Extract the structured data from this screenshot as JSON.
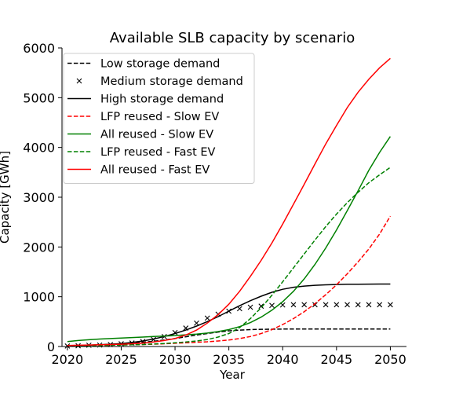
{
  "chart_data": {
    "type": "line",
    "title": "Available SLB capacity by scenario",
    "xlabel": "Year",
    "ylabel": "Capacity [GWh]",
    "xlim": [
      2019.5,
      2051.5
    ],
    "ylim": [
      0,
      6000
    ],
    "x_ticks": [
      2020,
      2025,
      2030,
      2035,
      2040,
      2045,
      2050
    ],
    "y_ticks": [
      0,
      1000,
      2000,
      3000,
      4000,
      5000,
      6000
    ],
    "grid": false,
    "legend_position": "top-left",
    "x": [
      2020,
      2021,
      2022,
      2023,
      2024,
      2025,
      2026,
      2027,
      2028,
      2029,
      2030,
      2031,
      2032,
      2033,
      2034,
      2035,
      2036,
      2037,
      2038,
      2039,
      2040,
      2041,
      2042,
      2043,
      2044,
      2045,
      2046,
      2047,
      2048,
      2049,
      2050
    ],
    "series": [
      {
        "name": "Low storage demand",
        "color": "#000000",
        "style": "dashed",
        "values": [
          5,
          15,
          25,
          35,
          45,
          55,
          70,
          85,
          105,
          130,
          160,
          195,
          230,
          260,
          290,
          315,
          330,
          340,
          345,
          348,
          350,
          350,
          350,
          350,
          350,
          350,
          350,
          350,
          350,
          350,
          350
        ]
      },
      {
        "name": "Medium storage demand",
        "color": "#000000",
        "style": "markers",
        "values": [
          10,
          15,
          25,
          30,
          40,
          55,
          70,
          100,
          140,
          200,
          280,
          370,
          470,
          570,
          650,
          710,
          760,
          790,
          810,
          825,
          835,
          840,
          840,
          840,
          840,
          840,
          840,
          840,
          840,
          840,
          840
        ]
      },
      {
        "name": "High storage demand",
        "color": "#000000",
        "style": "solid",
        "values": [
          5,
          15,
          25,
          35,
          45,
          60,
          80,
          110,
          150,
          200,
          260,
          330,
          410,
          500,
          600,
          710,
          820,
          920,
          1010,
          1090,
          1150,
          1190,
          1215,
          1230,
          1240,
          1245,
          1250,
          1252,
          1254,
          1255,
          1256
        ]
      },
      {
        "name": "LFP reused - Slow EV",
        "color": "#ff0000",
        "style": "dashed",
        "values": [
          5,
          10,
          15,
          20,
          25,
          30,
          35,
          40,
          45,
          55,
          65,
          75,
          85,
          95,
          110,
          130,
          160,
          200,
          260,
          340,
          440,
          560,
          700,
          860,
          1040,
          1240,
          1460,
          1700,
          1960,
          2260,
          2620
        ]
      },
      {
        "name": "All reused - Slow EV",
        "color": "#008000",
        "style": "solid",
        "values": [
          100,
          120,
          135,
          150,
          160,
          170,
          180,
          190,
          200,
          210,
          220,
          235,
          250,
          270,
          300,
          340,
          400,
          480,
          590,
          730,
          900,
          1110,
          1360,
          1650,
          1980,
          2340,
          2730,
          3130,
          3540,
          3900,
          4220
        ]
      },
      {
        "name": "LFP reused - Fast EV",
        "color": "#008000",
        "style": "dashed",
        "values": [
          5,
          10,
          15,
          20,
          25,
          30,
          35,
          40,
          50,
          60,
          75,
          90,
          110,
          140,
          190,
          260,
          380,
          560,
          780,
          1030,
          1300,
          1580,
          1860,
          2140,
          2410,
          2660,
          2890,
          3100,
          3290,
          3450,
          3600
        ]
      },
      {
        "name": "All reused - Fast EV",
        "color": "#ff0000",
        "style": "solid",
        "values": [
          20,
          25,
          30,
          35,
          40,
          45,
          55,
          70,
          90,
          120,
          160,
          230,
          330,
          470,
          640,
          850,
          1110,
          1410,
          1730,
          2080,
          2460,
          2860,
          3260,
          3670,
          4070,
          4440,
          4800,
          5110,
          5370,
          5600,
          5790
        ]
      }
    ]
  }
}
